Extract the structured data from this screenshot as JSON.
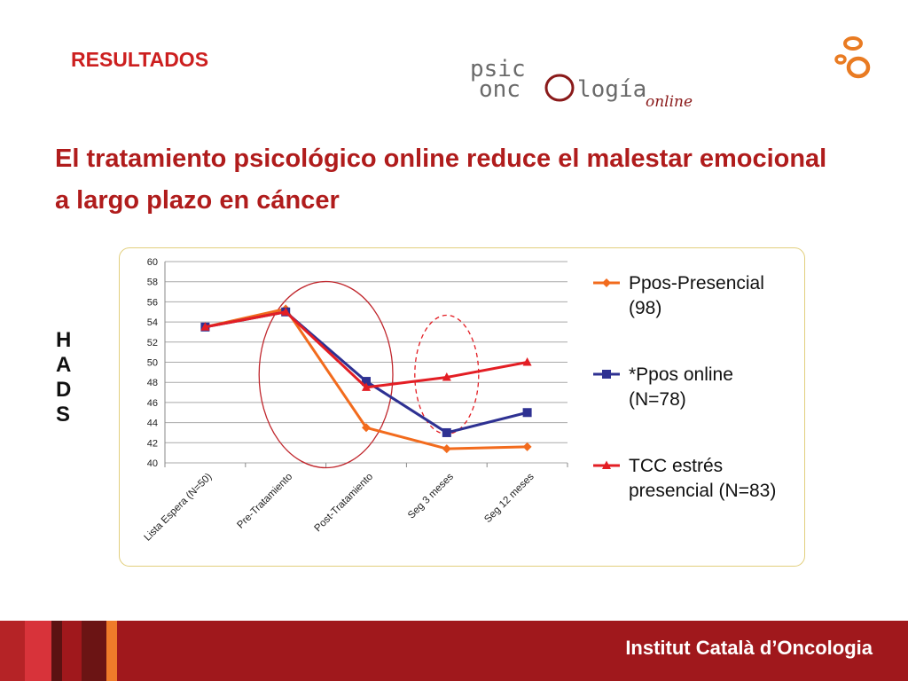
{
  "header": {
    "section_label": "RESULTADOS",
    "logo_text": {
      "line1": "psic",
      "line2_a": "onc",
      "line2_b": "logía",
      "script": "online"
    }
  },
  "headline": "El tratamiento psicológico online reduce el malestar emocional a largo plazo en cáncer",
  "side_label": [
    "H",
    "A",
    "D",
    "S"
  ],
  "chart_data": {
    "type": "line",
    "title": "",
    "xlabel": "",
    "ylabel": "",
    "categories": [
      "Lista Espera (N=50)",
      "Pre-Tratamiento",
      "Post-Tratamiento",
      "Seg  3 meses",
      "Seg 12 meses"
    ],
    "ylim": [
      40,
      60
    ],
    "yticks": [
      40,
      42,
      44,
      46,
      48,
      50,
      52,
      54,
      56,
      58,
      60
    ],
    "grid": true,
    "legend_position": "right",
    "series": [
      {
        "name": "Ppos-Presencial (98)",
        "legend_lines": [
          "Ppos-Presencial",
          "(98)"
        ],
        "color": "#f26b1d",
        "marker": "diamond",
        "values": [
          53.5,
          55.3,
          43.5,
          41.4,
          41.6
        ]
      },
      {
        "name": "*Ppos online (N=78)",
        "legend_lines": [
          "*Ppos online",
          "(N=78)"
        ],
        "color": "#2e3192",
        "marker": "square",
        "values": [
          53.5,
          55.0,
          48.1,
          43.0,
          45.0
        ]
      },
      {
        "name": "TCC estrés presencial (N=83)",
        "legend_lines": [
          "TCC estrés",
          "presencial (N=83)"
        ],
        "color": "#e31e24",
        "marker": "triangle",
        "values": [
          53.5,
          55.0,
          47.5,
          48.5,
          50.0
        ]
      }
    ],
    "annotations": [
      {
        "shape": "ellipse",
        "style": "solid",
        "color": "#c0272d",
        "around_categories": [
          1,
          2
        ]
      },
      {
        "shape": "ellipse",
        "style": "dashed",
        "color": "#e31e24",
        "around_categories": [
          3
        ]
      }
    ]
  },
  "footer": {
    "brand": "Institut Català d’Oncologia",
    "background": "#a0181c"
  }
}
